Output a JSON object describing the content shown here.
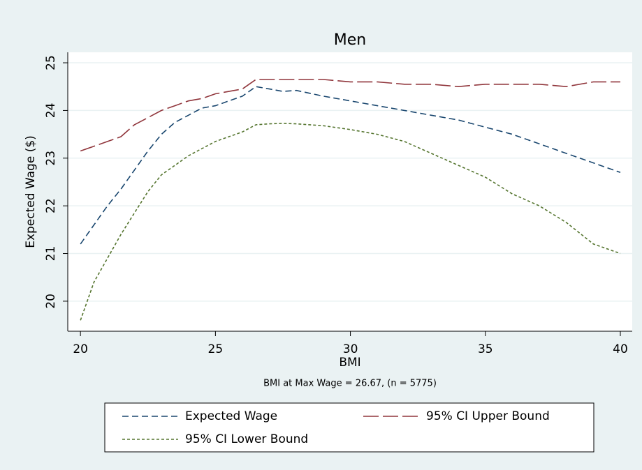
{
  "chart_data": {
    "type": "line",
    "title": "Men",
    "x_label": "BMI",
    "y_label": "Expected Wage ($)",
    "note": "BMI at Max Wage = 26.67, (n = 5775)",
    "x": [
      20,
      20.5,
      21,
      21.5,
      22,
      22.5,
      23,
      23.5,
      24,
      24.5,
      25,
      25.5,
      26,
      26.5,
      27,
      27.5,
      28,
      29,
      30,
      31,
      32,
      33,
      34,
      35,
      36,
      37,
      38,
      39,
      40
    ],
    "series": [
      {
        "name": "Expected Wage",
        "color": "#1a476f",
        "line_style": "dash",
        "values": [
          21.2,
          21.6,
          22.0,
          22.35,
          22.75,
          23.15,
          23.5,
          23.75,
          23.9,
          24.05,
          24.1,
          24.2,
          24.3,
          24.5,
          24.45,
          24.4,
          24.42,
          24.3,
          24.2,
          24.1,
          24.0,
          23.9,
          23.8,
          23.65,
          23.5,
          23.3,
          23.1,
          22.9,
          22.7
        ]
      },
      {
        "name": "95% CI Upper Bound",
        "color": "#90353b",
        "line_style": "longdash",
        "values": [
          23.15,
          23.25,
          23.35,
          23.45,
          23.7,
          23.85,
          24.0,
          24.1,
          24.2,
          24.25,
          24.35,
          24.4,
          24.45,
          24.65,
          24.65,
          24.65,
          24.65,
          24.65,
          24.6,
          24.6,
          24.55,
          24.55,
          24.5,
          24.55,
          24.55,
          24.55,
          24.5,
          24.6,
          24.6
        ]
      },
      {
        "name": "95% CI Lower Bound",
        "color": "#55752f",
        "line_style": "shortdash",
        "values": [
          19.6,
          20.4,
          20.9,
          21.4,
          21.85,
          22.3,
          22.65,
          22.85,
          23.05,
          23.2,
          23.35,
          23.45,
          23.55,
          23.7,
          23.72,
          23.73,
          23.72,
          23.68,
          23.6,
          23.5,
          23.35,
          23.1,
          22.85,
          22.6,
          22.25,
          22.0,
          21.65,
          21.2,
          21.0
        ]
      }
    ],
    "xlim": [
      19.53,
      40.44
    ],
    "xticks": [
      20,
      25,
      30,
      35,
      40
    ],
    "ylim": [
      19.37,
      25.22
    ],
    "yticks": [
      20,
      21,
      22,
      23,
      24,
      25
    ],
    "grid": true,
    "legend": "bottom"
  }
}
